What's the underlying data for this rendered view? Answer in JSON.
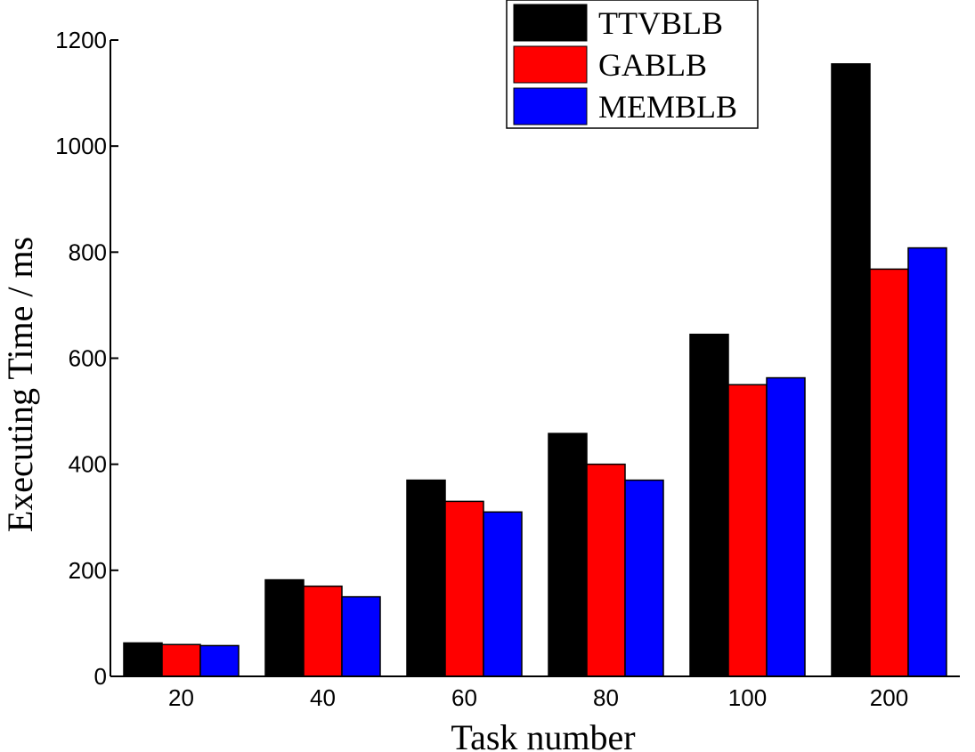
{
  "chart_data": {
    "type": "bar",
    "categories": [
      "20",
      "40",
      "60",
      "80",
      "100",
      "200"
    ],
    "series": [
      {
        "name": "TTVBLB",
        "color": "#000000",
        "values": [
          63,
          182,
          370,
          458,
          645,
          1155
        ]
      },
      {
        "name": "GABLB",
        "color": "#ff0000",
        "values": [
          60,
          170,
          330,
          400,
          550,
          768
        ]
      },
      {
        "name": "MEMBLB",
        "color": "#0000ff",
        "values": [
          58,
          150,
          310,
          370,
          563,
          808
        ]
      }
    ],
    "title": "",
    "xlabel": "Task number",
    "ylabel": "Executing Time / ms",
    "ylim": [
      0,
      1200
    ],
    "yticks": [
      0,
      200,
      400,
      600,
      800,
      1000,
      1200
    ],
    "grid": false,
    "legend_position": "top-right"
  }
}
